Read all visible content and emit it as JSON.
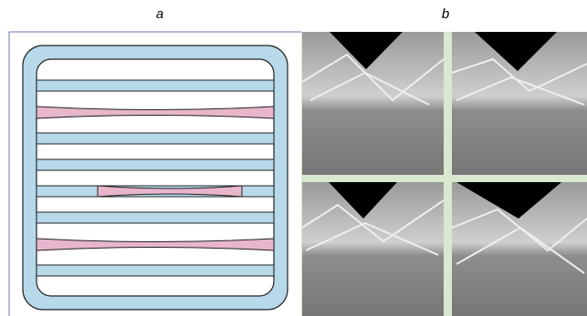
{
  "panels": {
    "a": {
      "label": "a"
    },
    "b": {
      "label": "b"
    }
  }
}
